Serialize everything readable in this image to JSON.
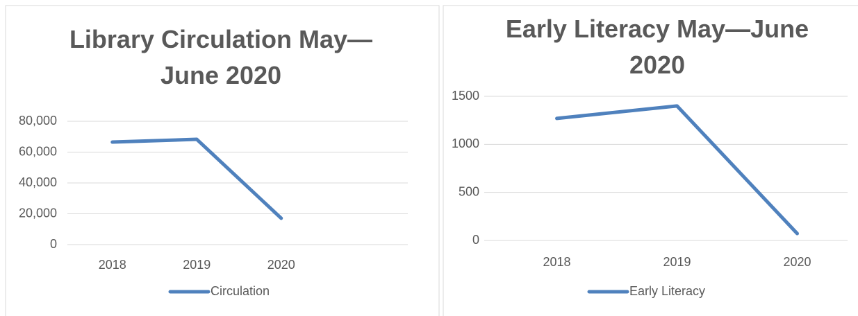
{
  "chart_data": [
    {
      "type": "line",
      "title": "Library Circulation May—June 2020",
      "categories": [
        "2018",
        "2019",
        "2020",
        null
      ],
      "series": [
        {
          "name": "Circulation",
          "color": "#4f81bd",
          "values": [
            66500,
            68300,
            17100,
            null
          ]
        }
      ],
      "ylim": [
        0,
        80000
      ],
      "yticks": [
        0,
        {
          "value": 20000,
          "label": "20,000"
        },
        {
          "value": 40000,
          "label": "40,000"
        },
        {
          "value": 60000,
          "label": "60,000"
        },
        {
          "value": 80000,
          "label": "80,000"
        }
      ],
      "grid": true,
      "legend": "bottom"
    },
    {
      "type": "line",
      "title": "Early Literacy May—June 2020",
      "categories": [
        "2018",
        "2019",
        "2020"
      ],
      "series": [
        {
          "name": "Early Literacy",
          "color": "#4f81bd",
          "values": [
            1270,
            1400,
            72
          ]
        }
      ],
      "ylim": [
        0,
        1500
      ],
      "yticks": [
        0,
        500,
        1000,
        1500
      ],
      "grid": true,
      "legend": "bottom"
    }
  ]
}
